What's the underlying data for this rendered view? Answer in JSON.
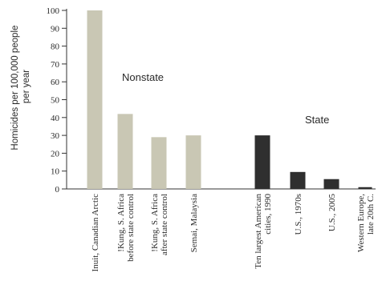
{
  "chart_data": {
    "type": "bar",
    "ylabel": "Homicides per 100,000 people per year",
    "ylabel_lines": [
      "Homicides per 100,000 people",
      "per year"
    ],
    "ylim": [
      0,
      100
    ],
    "yticks": [
      "0",
      "10",
      "20",
      "30",
      "40",
      "50",
      "60",
      "70",
      "80",
      "90",
      "100"
    ],
    "grid": false,
    "groups": [
      {
        "name": "Nonstate",
        "color": "#c9c7b4",
        "categories": [
          {
            "label_lines": [
              "Inuit, Canadian Arctic"
            ],
            "value": 100
          },
          {
            "label_lines": [
              "!Kung, S. Africa",
              "before state control"
            ],
            "value": 42
          },
          {
            "label_lines": [
              "!Kung, S. Africa",
              "after state control"
            ],
            "value": 29
          },
          {
            "label_lines": [
              "Semai, Malaysia"
            ],
            "value": 30
          }
        ]
      },
      {
        "name": "State",
        "color": "#2f2f2f",
        "categories": [
          {
            "label_lines": [
              "Ten largest American",
              "cities, 1990"
            ],
            "value": 30
          },
          {
            "label_lines": [
              "U.S., 1970s"
            ],
            "value": 9.5
          },
          {
            "label_lines": [
              "U.S., 2005"
            ],
            "value": 5.5
          },
          {
            "label_lines": [
              "Western Europe,",
              "late 20th C."
            ],
            "value": 1
          }
        ]
      }
    ]
  }
}
